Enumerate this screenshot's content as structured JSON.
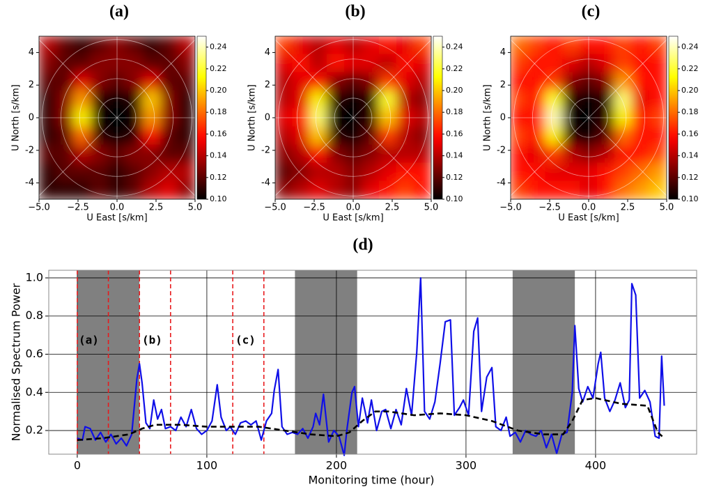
{
  "chart_data": [
    {
      "type": "heatmap",
      "title": "(a)",
      "xlabel": "U East [s/km]",
      "ylabel": "U North [s/km]",
      "colormap": "hot",
      "polar_grid": true,
      "xlim": [
        -5,
        5
      ],
      "ylim": [
        -5,
        5
      ],
      "xticks": [
        {
          "value": -5,
          "label": "−5.0"
        },
        {
          "value": -2.5,
          "label": "−2.5"
        },
        {
          "value": 0,
          "label": "0.0"
        },
        2.5,
        {
          "value": 5,
          "label": "5.0"
        }
      ],
      "yticks": [
        -4,
        -2,
        0,
        2,
        4
      ],
      "zlim": [
        0.1,
        0.25
      ],
      "zticks": [
        {
          "value": 0.1,
          "label": "0.10"
        },
        0.12,
        0.14,
        0.16,
        0.18,
        {
          "value": 0.2,
          "label": "0.20"
        },
        0.22,
        0.24
      ],
      "z": [
        [
          0.14,
          0.12,
          0.11,
          0.12,
          0.13,
          0.12,
          0.11,
          0.12,
          0.14
        ],
        [
          0.13,
          0.12,
          0.12,
          0.13,
          0.13,
          0.13,
          0.12,
          0.12,
          0.13
        ],
        [
          0.12,
          0.12,
          0.15,
          0.13,
          0.12,
          0.13,
          0.15,
          0.12,
          0.12
        ],
        [
          0.11,
          0.13,
          0.19,
          0.11,
          0.1,
          0.11,
          0.2,
          0.13,
          0.11
        ],
        [
          0.11,
          0.13,
          0.21,
          0.1,
          0.1,
          0.1,
          0.19,
          0.13,
          0.11
        ],
        [
          0.11,
          0.12,
          0.18,
          0.11,
          0.1,
          0.11,
          0.16,
          0.12,
          0.11
        ],
        [
          0.12,
          0.12,
          0.14,
          0.13,
          0.12,
          0.13,
          0.13,
          0.12,
          0.12
        ],
        [
          0.11,
          0.12,
          0.12,
          0.12,
          0.11,
          0.12,
          0.13,
          0.14,
          0.14
        ],
        [
          0.11,
          0.11,
          0.11,
          0.12,
          0.11,
          0.12,
          0.14,
          0.15,
          0.13
        ]
      ]
    },
    {
      "type": "heatmap",
      "title": "(b)",
      "xlabel": "U East [s/km]",
      "ylabel": "U North [s/km]",
      "colormap": "hot",
      "polar_grid": true,
      "xlim": [
        -5,
        5
      ],
      "ylim": [
        -5,
        5
      ],
      "xticks": [
        {
          "value": -5,
          "label": "−5.0"
        },
        {
          "value": -2.5,
          "label": "−2.5"
        },
        {
          "value": 0,
          "label": "0.0"
        },
        2.5,
        {
          "value": 5,
          "label": "5.0"
        }
      ],
      "yticks": [
        -4,
        -2,
        0,
        2,
        4
      ],
      "zlim": [
        0.1,
        0.25
      ],
      "zticks": [
        {
          "value": 0.1,
          "label": "0.10"
        },
        0.12,
        0.14,
        0.16,
        0.18,
        {
          "value": 0.2,
          "label": "0.20"
        },
        0.22,
        0.24
      ],
      "z": [
        [
          0.17,
          0.15,
          0.14,
          0.15,
          0.14,
          0.15,
          0.16,
          0.15,
          0.17
        ],
        [
          0.15,
          0.16,
          0.14,
          0.16,
          0.15,
          0.15,
          0.14,
          0.16,
          0.15
        ],
        [
          0.14,
          0.15,
          0.16,
          0.13,
          0.12,
          0.13,
          0.17,
          0.15,
          0.14
        ],
        [
          0.14,
          0.15,
          0.21,
          0.11,
          0.1,
          0.11,
          0.22,
          0.14,
          0.13
        ],
        [
          0.15,
          0.16,
          0.23,
          0.1,
          0.1,
          0.11,
          0.2,
          0.15,
          0.14
        ],
        [
          0.14,
          0.15,
          0.2,
          0.11,
          0.1,
          0.12,
          0.17,
          0.14,
          0.13
        ],
        [
          0.13,
          0.14,
          0.16,
          0.13,
          0.12,
          0.13,
          0.14,
          0.14,
          0.14
        ],
        [
          0.12,
          0.13,
          0.14,
          0.14,
          0.13,
          0.14,
          0.15,
          0.16,
          0.16
        ],
        [
          0.13,
          0.14,
          0.15,
          0.14,
          0.13,
          0.15,
          0.16,
          0.17,
          0.16
        ]
      ]
    },
    {
      "type": "heatmap",
      "title": "(c)",
      "xlabel": "U East [s/km]",
      "ylabel": "U North [s/km]",
      "colormap": "hot",
      "polar_grid": true,
      "xlim": [
        -5,
        5
      ],
      "ylim": [
        -5,
        5
      ],
      "xticks": [
        {
          "value": -5,
          "label": "−5.0"
        },
        {
          "value": -2.5,
          "label": "−2.5"
        },
        {
          "value": 0,
          "label": "0.0"
        },
        2.5,
        {
          "value": 5,
          "label": "5.0"
        }
      ],
      "yticks": [
        -4,
        -2,
        0,
        2,
        4
      ],
      "zlim": [
        0.1,
        0.25
      ],
      "zticks": [
        {
          "value": 0.1,
          "label": "0.10"
        },
        0.12,
        0.14,
        0.16,
        0.18,
        {
          "value": 0.2,
          "label": "0.20"
        },
        0.22,
        0.24
      ],
      "z": [
        [
          0.18,
          0.17,
          0.16,
          0.17,
          0.16,
          0.16,
          0.17,
          0.16,
          0.17
        ],
        [
          0.17,
          0.16,
          0.16,
          0.15,
          0.14,
          0.15,
          0.17,
          0.16,
          0.16
        ],
        [
          0.16,
          0.16,
          0.17,
          0.13,
          0.12,
          0.13,
          0.19,
          0.16,
          0.16
        ],
        [
          0.17,
          0.16,
          0.22,
          0.11,
          0.1,
          0.11,
          0.23,
          0.15,
          0.16
        ],
        [
          0.16,
          0.16,
          0.24,
          0.1,
          0.1,
          0.11,
          0.21,
          0.16,
          0.17
        ],
        [
          0.17,
          0.16,
          0.21,
          0.11,
          0.1,
          0.12,
          0.18,
          0.16,
          0.16
        ],
        [
          0.16,
          0.15,
          0.17,
          0.14,
          0.13,
          0.14,
          0.16,
          0.16,
          0.17
        ],
        [
          0.16,
          0.16,
          0.15,
          0.15,
          0.15,
          0.16,
          0.17,
          0.18,
          0.19
        ],
        [
          0.17,
          0.16,
          0.16,
          0.16,
          0.15,
          0.16,
          0.18,
          0.19,
          0.2
        ]
      ]
    },
    {
      "type": "line",
      "title": "(d)",
      "xlabel": "Monitoring time (hour)",
      "ylabel": "Normalised Spectrum Power",
      "grid": true,
      "xlim": [
        -22,
        478
      ],
      "ylim": [
        0.076,
        1.04
      ],
      "xticks": [
        0,
        100,
        200,
        300,
        400
      ],
      "yticks": [
        0.2,
        0.4,
        0.6,
        0.8,
        {
          "value": 1,
          "label": "1.0"
        }
      ],
      "shaded_spans": [
        [
          0,
          48
        ],
        [
          168,
          216
        ],
        [
          336,
          384
        ]
      ],
      "span_color": "#808080",
      "vlines": [
        0,
        24,
        48,
        72,
        120,
        144
      ],
      "vline_color": "#e8191c",
      "annotations": [
        "(a)",
        "(b)",
        "(c)"
      ],
      "series": [
        {
          "color": "#0f0fe8",
          "dash": false,
          "x": [
            0,
            4,
            6,
            10,
            14,
            18,
            22,
            26,
            30,
            34,
            38,
            42,
            46,
            48,
            50,
            53,
            56,
            59,
            62,
            65,
            68,
            72,
            76,
            80,
            84,
            88,
            92,
            96,
            100,
            104,
            108,
            111,
            115,
            118,
            122,
            126,
            130,
            134,
            138,
            142,
            146,
            150,
            152,
            155,
            158,
            162,
            166,
            170,
            174,
            178,
            182,
            184,
            187,
            190,
            194,
            198,
            202,
            206,
            208,
            212,
            214,
            217,
            220,
            224,
            227,
            231,
            235,
            238,
            242,
            246,
            250,
            254,
            258,
            262,
            265,
            268,
            272,
            276,
            280,
            284,
            288,
            291,
            295,
            298,
            302,
            306,
            309,
            312,
            316,
            320,
            323,
            327,
            331,
            334,
            338,
            342,
            346,
            350,
            354,
            358,
            362,
            366,
            370,
            374,
            378,
            382,
            384,
            387,
            390,
            394,
            398,
            402,
            404,
            407,
            411,
            415,
            419,
            423,
            426,
            428,
            431,
            434,
            438,
            442,
            446,
            449,
            451,
            453
          ],
          "values": [
            0.16,
            0.15,
            0.22,
            0.21,
            0.15,
            0.19,
            0.14,
            0.18,
            0.13,
            0.16,
            0.12,
            0.18,
            0.47,
            0.55,
            0.45,
            0.24,
            0.21,
            0.36,
            0.26,
            0.31,
            0.21,
            0.22,
            0.2,
            0.27,
            0.22,
            0.31,
            0.21,
            0.18,
            0.2,
            0.25,
            0.44,
            0.27,
            0.2,
            0.22,
            0.18,
            0.24,
            0.25,
            0.23,
            0.25,
            0.15,
            0.25,
            0.29,
            0.41,
            0.52,
            0.22,
            0.18,
            0.19,
            0.18,
            0.21,
            0.16,
            0.22,
            0.29,
            0.23,
            0.39,
            0.14,
            0.2,
            0.17,
            0.07,
            0.2,
            0.4,
            0.43,
            0.22,
            0.37,
            0.24,
            0.36,
            0.2,
            0.3,
            0.31,
            0.21,
            0.31,
            0.23,
            0.42,
            0.28,
            0.61,
            1.0,
            0.3,
            0.26,
            0.35,
            0.55,
            0.77,
            0.78,
            0.28,
            0.32,
            0.36,
            0.28,
            0.72,
            0.79,
            0.3,
            0.48,
            0.53,
            0.22,
            0.2,
            0.27,
            0.17,
            0.19,
            0.14,
            0.2,
            0.18,
            0.17,
            0.2,
            0.11,
            0.18,
            0.08,
            0.18,
            0.19,
            0.4,
            0.75,
            0.42,
            0.35,
            0.43,
            0.37,
            0.55,
            0.61,
            0.37,
            0.3,
            0.36,
            0.45,
            0.32,
            0.36,
            0.97,
            0.91,
            0.37,
            0.41,
            0.35,
            0.17,
            0.16,
            0.59,
            0.33
          ]
        },
        {
          "color": "#000000",
          "dash": true,
          "x": [
            0,
            20,
            40,
            50,
            60,
            80,
            100,
            120,
            140,
            160,
            180,
            200,
            210,
            220,
            230,
            240,
            260,
            280,
            300,
            320,
            340,
            360,
            375,
            382,
            390,
            400,
            420,
            440,
            448,
            453
          ],
          "values": [
            0.15,
            0.16,
            0.18,
            0.21,
            0.23,
            0.23,
            0.22,
            0.22,
            0.22,
            0.2,
            0.18,
            0.17,
            0.19,
            0.25,
            0.3,
            0.3,
            0.28,
            0.29,
            0.28,
            0.25,
            0.2,
            0.18,
            0.18,
            0.25,
            0.36,
            0.37,
            0.34,
            0.33,
            0.19,
            0.16
          ]
        }
      ]
    }
  ]
}
